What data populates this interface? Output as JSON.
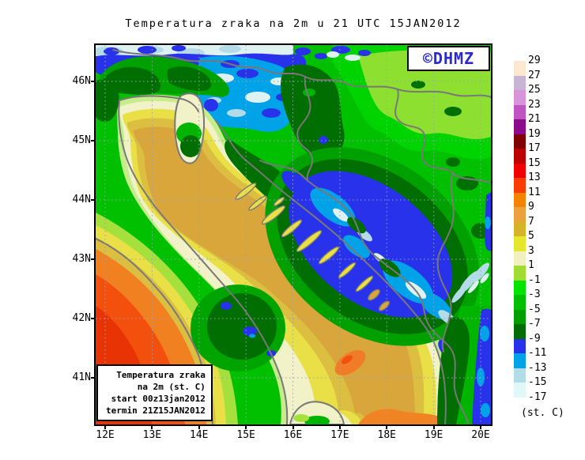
{
  "title": "Temperatura zraka na 2m u 21 UTC 15JAN2012",
  "map": {
    "logo_text": "©DHMZ",
    "x_tick_labels": [
      "12E",
      "13E",
      "14E",
      "15E",
      "16E",
      "17E",
      "18E",
      "19E",
      "20E"
    ],
    "y_tick_labels": [
      "46N",
      "45N",
      "44N",
      "43N",
      "42N",
      "41N"
    ]
  },
  "info_box": {
    "line1": "Temperatura zraka",
    "line2": "na 2m (st. C)",
    "line3": "start 00z13jan2012",
    "line4": "termin 21Z15JAN2012"
  },
  "legend": {
    "unit": "(st. C)",
    "labels": [
      "29",
      "27",
      "25",
      "23",
      "21",
      "19",
      "17",
      "15",
      "13",
      "11",
      "9",
      "7",
      "5",
      "3",
      "1",
      "-1",
      "-3",
      "-5",
      "-7",
      "-9",
      "-11",
      "-13",
      "-15",
      "-17"
    ],
    "box_colors": [
      "#fce8d0",
      "#c8b4d4",
      "#d894d8",
      "#c054c0",
      "#8c0a8c",
      "#800000",
      "#bc0000",
      "#f00000",
      "#fa3c00",
      "#f58200",
      "#eba13c",
      "#d7b32a",
      "#e6e62e",
      "#f0f0c0",
      "#a0dc32",
      "#00e400",
      "#00c000",
      "#00a000",
      "#006e00",
      "#2832ea",
      "#00a2e8",
      "#b4dce8",
      "#e0f8f8"
    ]
  },
  "colors": {
    "logo_blue": "#2a2ad0",
    "border_gray": "#787878",
    "grid_gray": "#9aa2b6",
    "sea_tan": "#d9a63c",
    "warm_yellow": "#e8e046",
    "cold_blue": "#2832ea",
    "cold_sky": "#00a2e8",
    "land_green": "#00c000",
    "dark_green": "#006e00",
    "hot_orange": "#f08020",
    "hot_red": "#f2500c"
  }
}
